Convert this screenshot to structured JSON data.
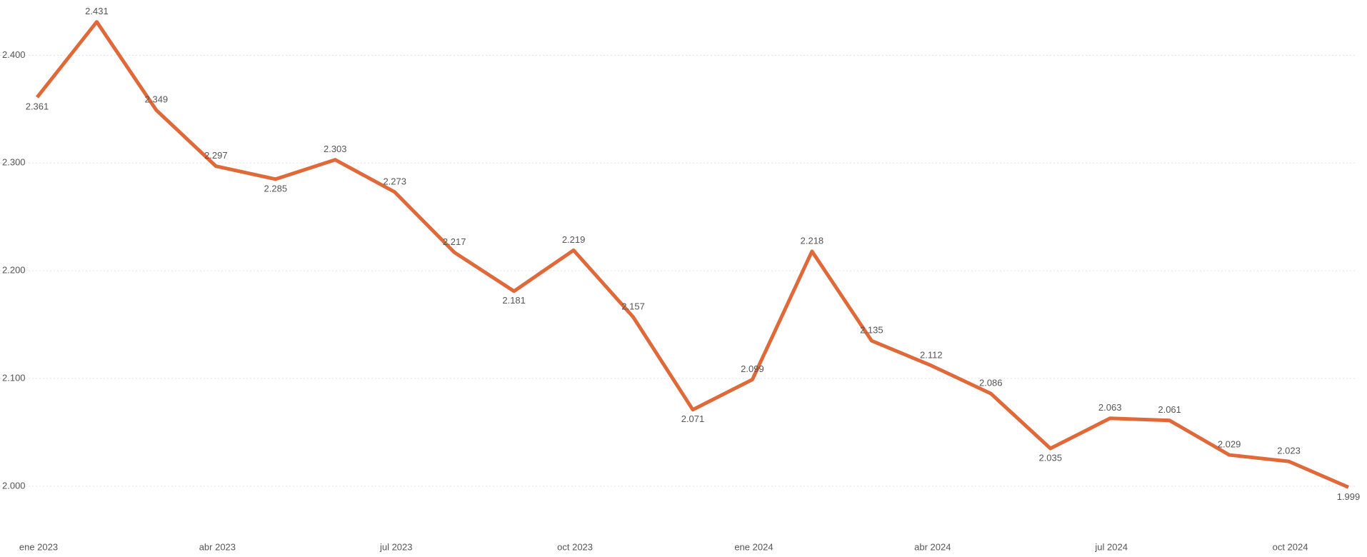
{
  "chart_data": {
    "type": "line",
    "categories": [
      "ene 2023",
      null,
      null,
      "abr 2023",
      null,
      null,
      "jul 2023",
      null,
      null,
      "oct 2023",
      null,
      null,
      "ene 2024",
      null,
      null,
      "abr 2024",
      null,
      null,
      "jul 2024",
      null,
      null,
      "oct 2024",
      null
    ],
    "values": [
      2361,
      2431,
      2349,
      2297,
      2285,
      2303,
      2273,
      2217,
      2181,
      2219,
      2157,
      2071,
      2099,
      2218,
      2135,
      2112,
      2086,
      2035,
      2063,
      2061,
      2029,
      2023,
      1999
    ],
    "value_labels": [
      "2.361",
      "2.431",
      "2.349",
      "2.297",
      "2.285",
      "2.303",
      "2.273",
      "2.217",
      "2.181",
      "2.219",
      "2.157",
      "2.071",
      "2.099",
      "2.218",
      "2.135",
      "2.112",
      "2.086",
      "2.035",
      "2.063",
      "2.061",
      "2.029",
      "2.023",
      "1.999"
    ],
    "color": "#e0693a",
    "ylim": [
      1980,
      2440
    ],
    "yticks": [
      {
        "value": 2000,
        "label": "2.000"
      },
      {
        "value": 2100,
        "label": "2.100"
      },
      {
        "value": 2200,
        "label": "2.200"
      },
      {
        "value": 2300,
        "label": "2.300"
      },
      {
        "value": 2400,
        "label": "2.400"
      }
    ],
    "grid": true
  }
}
